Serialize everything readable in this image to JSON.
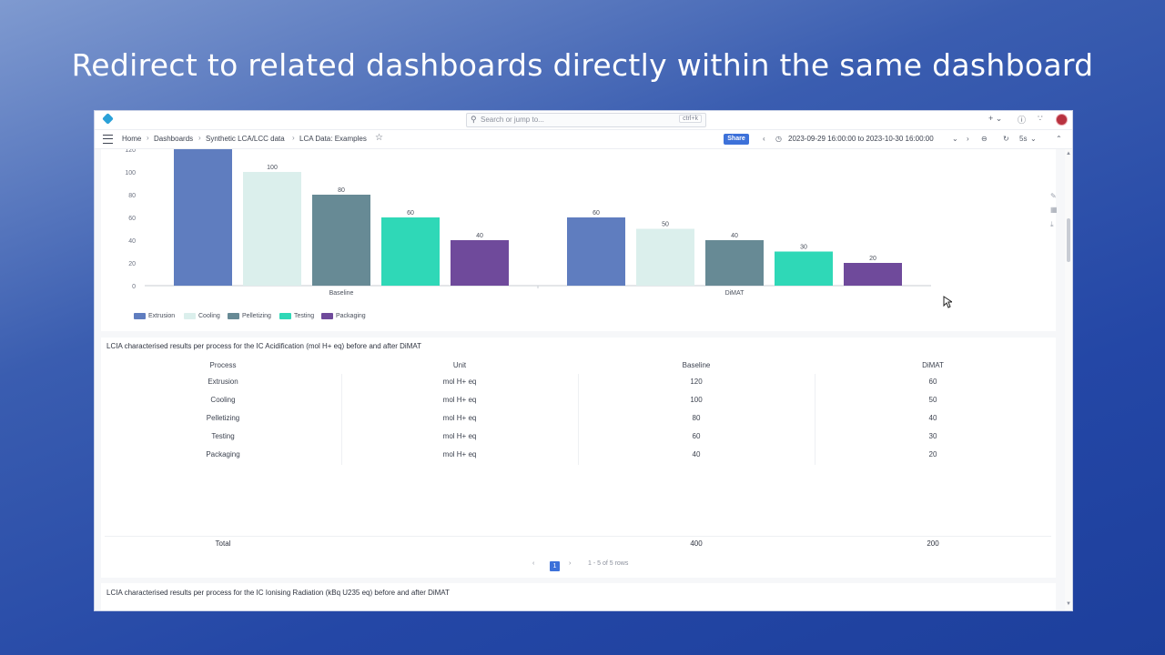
{
  "headline": "Redirect to related dashboards directly within the same dashboard",
  "topbar": {
    "search_placeholder": "Search or jump to...",
    "search_shortcut": "ctrl+k",
    "icons": [
      "plus-icon",
      "help-icon",
      "rss-icon",
      "avatar"
    ]
  },
  "breadcrumbs": [
    "Home",
    "Dashboards",
    "Synthetic LCA/LCC data",
    "LCA Data: Examples"
  ],
  "navbar": {
    "share_label": "Share",
    "time_range": "2023-09-29 16:00:00 to 2023-10-30 16:00:00",
    "refresh_interval": "5s"
  },
  "colors": {
    "extrusion": "#5f7dbf",
    "cooling": "#dbefec",
    "pelletizing": "#678a95",
    "testing": "#2fd8b7",
    "packaging": "#6f4a9b",
    "accent": "#3d71d9"
  },
  "chart_data": {
    "type": "bar",
    "categories": [
      "Baseline",
      "DiMAT"
    ],
    "series": [
      {
        "name": "Extrusion",
        "values": [
          120,
          60
        ]
      },
      {
        "name": "Cooling",
        "values": [
          100,
          50
        ]
      },
      {
        "name": "Pelletizing",
        "values": [
          80,
          40
        ]
      },
      {
        "name": "Testing",
        "values": [
          60,
          30
        ]
      },
      {
        "name": "Packaging",
        "values": [
          40,
          20
        ]
      }
    ],
    "y_ticks": [
      0,
      20,
      40,
      60,
      80,
      100,
      120
    ],
    "ylim": [
      0,
      120
    ],
    "legend_position": "bottom-left"
  },
  "table": {
    "title": "LCIA characterised results per process for the IC Acidification (mol H+ eq) before and after DiMAT",
    "headers": [
      "Process",
      "Unit",
      "Baseline",
      "DiMAT"
    ],
    "rows": [
      [
        "Extrusion",
        "mol H+ eq",
        "120",
        "60"
      ],
      [
        "Cooling",
        "mol H+ eq",
        "100",
        "50"
      ],
      [
        "Pelletizing",
        "mol H+ eq",
        "80",
        "40"
      ],
      [
        "Testing",
        "mol H+ eq",
        "60",
        "30"
      ],
      [
        "Packaging",
        "mol H+ eq",
        "40",
        "20"
      ]
    ],
    "total_label": "Total",
    "total_baseline": "400",
    "total_dimat": "200",
    "page": "1",
    "rows_info": "1 - 5 of 5 rows"
  },
  "next_panel": {
    "title": "LCIA characterised results per process for the IC Ionising Radiation (kBq U235 eq) before and after DiMAT"
  }
}
